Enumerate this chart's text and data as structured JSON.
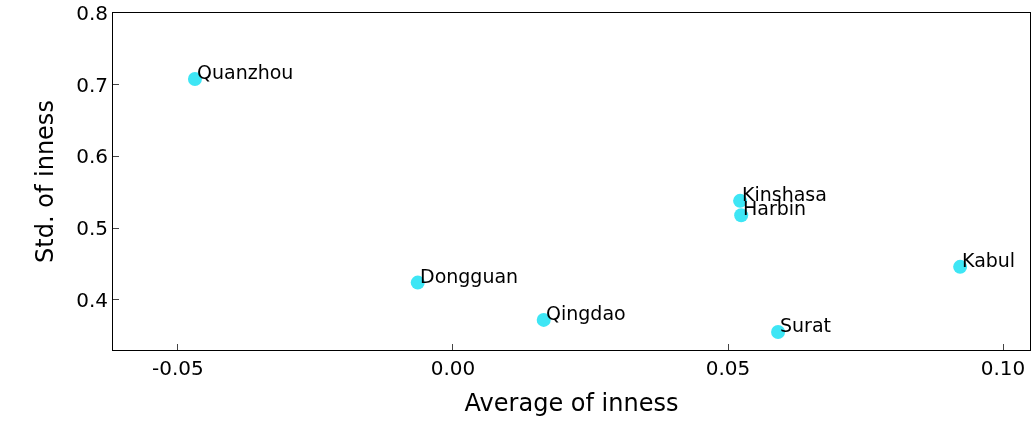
{
  "chart_data": {
    "type": "scatter",
    "xlabel": "Average of inness",
    "ylabel": "Std. of inness",
    "x": [
      -0.0469,
      -0.0064,
      0.0165,
      0.0522,
      0.0524,
      0.0591,
      0.0922
    ],
    "values": [
      0.708,
      0.424,
      0.372,
      0.538,
      0.518,
      0.355,
      0.446
    ],
    "color": "#3ee6f5",
    "marker": "circle",
    "xlim": [
      -0.0618,
      0.1049
    ],
    "ylim": [
      0.33,
      0.8
    ],
    "xticks": [
      {
        "value": -0.05,
        "label": "-0.05"
      },
      {
        "value": 0,
        "label": "0.00"
      },
      {
        "value": 0.05,
        "label": "0.05"
      },
      {
        "value": 0.1,
        "label": "0.10"
      }
    ],
    "yticks": [
      {
        "value": 0.4,
        "label": "0.4"
      },
      {
        "value": 0.5,
        "label": "0.5"
      },
      {
        "value": 0.6,
        "label": "0.6"
      },
      {
        "value": 0.7,
        "label": "0.7"
      },
      {
        "value": 0.8,
        "label": "0.8"
      }
    ],
    "annotations": [
      {
        "text": "Quanzhou",
        "x": -0.0469,
        "y": 0.708
      },
      {
        "text": "Dongguan",
        "x": -0.0064,
        "y": 0.424
      },
      {
        "text": "Qingdao",
        "x": 0.0165,
        "y": 0.372
      },
      {
        "text": "Kinshasa",
        "x": 0.0522,
        "y": 0.538
      },
      {
        "text": "Harbin",
        "x": 0.0524,
        "y": 0.518
      },
      {
        "text": "Surat",
        "x": 0.0591,
        "y": 0.355
      },
      {
        "text": "Kabul",
        "x": 0.0922,
        "y": 0.446
      }
    ]
  }
}
